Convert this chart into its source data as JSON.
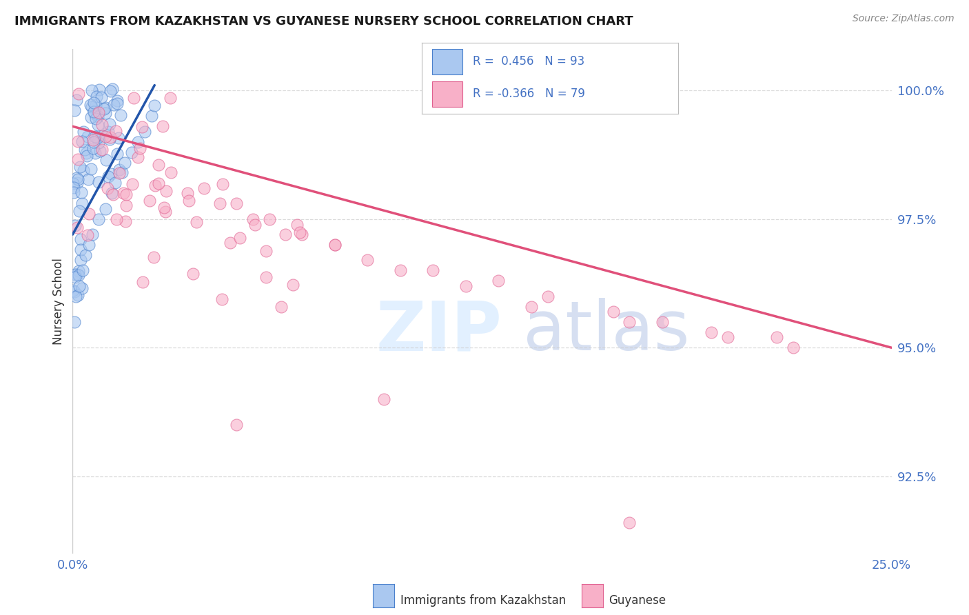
{
  "title": "IMMIGRANTS FROM KAZAKHSTAN VS GUYANESE NURSERY SCHOOL CORRELATION CHART",
  "source": "Source: ZipAtlas.com",
  "ylabel": "Nursery School",
  "ytick_labels": [
    "92.5%",
    "95.0%",
    "97.5%",
    "100.0%"
  ],
  "ytick_values": [
    0.925,
    0.95,
    0.975,
    1.0
  ],
  "xmin": 0.0,
  "xmax": 0.25,
  "ymin": 0.91,
  "ymax": 1.008,
  "r_blue": 0.456,
  "n_blue": 93,
  "r_pink": -0.366,
  "n_pink": 79,
  "color_blue_fill": "#aac8f0",
  "color_blue_edge": "#4a80cc",
  "color_blue_line": "#2255aa",
  "color_pink_fill": "#f8b0c8",
  "color_pink_edge": "#e06090",
  "color_pink_line": "#e0507a",
  "color_axis": "#4472c4",
  "color_grid": "#cccccc",
  "color_title": "#1a1a1a",
  "color_source": "#888888",
  "legend_label_blue": "Immigrants from Kazakhstan",
  "legend_label_pink": "Guyanese",
  "xtick_values": [
    0.0,
    0.05,
    0.1,
    0.15,
    0.2,
    0.25
  ],
  "xtick_labels": [
    "0.0%",
    "",
    "",
    "",
    "",
    "25.0%"
  ],
  "blue_line_x": [
    0.0,
    0.025
  ],
  "blue_line_y": [
    0.972,
    1.001
  ],
  "pink_line_x": [
    0.0,
    0.25
  ],
  "pink_line_y": [
    0.993,
    0.95
  ]
}
